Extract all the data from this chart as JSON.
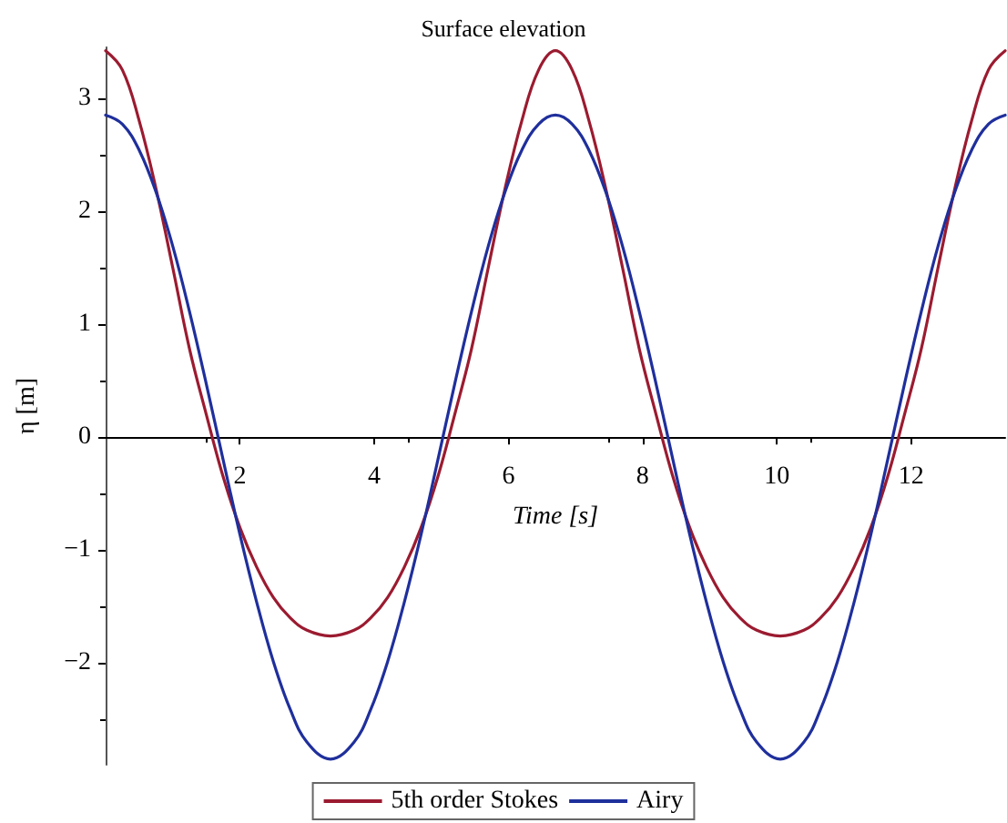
{
  "chart_data": {
    "type": "line",
    "title": "Surface elevation",
    "xlabel": "Time [s]",
    "ylabel": "η [m]",
    "x": [
      0,
      0.25,
      0.5,
      0.75,
      1,
      1.25,
      1.5,
      1.75,
      2,
      2.25,
      2.5,
      2.75,
      3,
      3.35,
      3.7,
      3.95,
      4.2,
      4.45,
      4.7,
      4.95,
      5.2,
      5.45,
      5.7,
      5.95,
      6.2,
      6.45,
      6.7,
      6.95,
      7.2,
      7.45,
      7.7,
      7.95,
      8.2,
      8.45,
      8.7,
      8.95,
      9.2,
      9.45,
      9.7,
      10.05,
      10.4,
      10.65,
      10.9,
      11.15,
      11.4,
      11.65,
      11.9,
      12.15,
      12.4,
      12.65,
      12.9,
      13.15,
      13.4
    ],
    "series": [
      {
        "name": "5th order Stokes",
        "color": "#9b1b30",
        "values": [
          3.42,
          3.25,
          2.8,
          2.2,
          1.5,
          0.78,
          0.2,
          -0.35,
          -0.8,
          -1.15,
          -1.42,
          -1.6,
          -1.71,
          -1.76,
          -1.71,
          -1.6,
          -1.42,
          -1.15,
          -0.8,
          -0.35,
          0.2,
          0.78,
          1.5,
          2.2,
          2.8,
          3.25,
          3.42,
          3.25,
          2.8,
          2.2,
          1.5,
          0.78,
          0.2,
          -0.35,
          -0.8,
          -1.15,
          -1.42,
          -1.6,
          -1.71,
          -1.76,
          -1.71,
          -1.6,
          -1.42,
          -1.15,
          -0.8,
          -0.35,
          0.2,
          0.78,
          1.5,
          2.2,
          2.8,
          3.25,
          3.42
        ]
      },
      {
        "name": "Airy",
        "color": "#1f2f9c",
        "values": [
          2.85,
          2.77,
          2.54,
          2.17,
          1.69,
          1.11,
          0.47,
          -0.2,
          -0.86,
          -1.46,
          -1.99,
          -2.41,
          -2.7,
          -2.85,
          -2.7,
          -2.41,
          -1.99,
          -1.46,
          -0.86,
          -0.2,
          0.47,
          1.11,
          1.69,
          2.17,
          2.54,
          2.77,
          2.85,
          2.77,
          2.54,
          2.17,
          1.69,
          1.11,
          0.47,
          -0.2,
          -0.86,
          -1.46,
          -1.99,
          -2.41,
          -2.7,
          -2.85,
          -2.7,
          -2.41,
          -1.99,
          -1.46,
          -0.86,
          -0.2,
          0.47,
          1.11,
          1.69,
          2.17,
          2.54,
          2.77,
          2.85
        ]
      }
    ],
    "xlim": [
      0,
      13.4
    ],
    "xticks": [
      2,
      4,
      6,
      8,
      10,
      12
    ],
    "ylim": [
      -2.9,
      3.45
    ],
    "yticks": [
      -2,
      -1,
      0,
      1,
      2,
      3
    ],
    "grid": false,
    "legend": "bottom",
    "marker": "none",
    "line_style": "solid"
  }
}
